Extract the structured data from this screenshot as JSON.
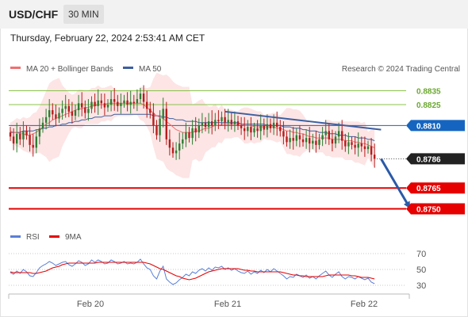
{
  "header": {
    "symbol": "USD/CHF",
    "timeframe": "30 MIN",
    "datetime": "Thursday, February 22, 2024 2:53:41 AM CET"
  },
  "legend": {
    "ma20": "MA 20 + Bollinger Bands",
    "ma50": "MA 50",
    "credit": "Research © 2024 Trading Central",
    "rsi": "RSI",
    "rsi_ma": "9MA"
  },
  "colors": {
    "candle_up": "#2e7d32",
    "candle_down": "#b71c1c",
    "ma20": "#f07070",
    "ma50": "#3d5fa0",
    "bollinger_fill": "#fde0e0",
    "resistance_green": "#8bc34a",
    "pivot_blue": "#1565c0",
    "support_red": "#e60000",
    "last_price": "#222222",
    "rsi": "#5b7fd6",
    "rsi_ma": "#e60000"
  },
  "chart_data": [
    {
      "type": "candlestick",
      "x_labels": [
        "Feb 20",
        "Feb 21",
        "Feb 22"
      ],
      "ylim": [
        0.874,
        0.8845
      ],
      "levels": [
        {
          "label": "0.8835",
          "value": 0.8835,
          "kind": "resistance"
        },
        {
          "label": "0.8825",
          "value": 0.8825,
          "kind": "resistance"
        },
        {
          "label": "0.8810",
          "value": 0.881,
          "kind": "pivot"
        },
        {
          "label": "0.8786",
          "value": 0.8786,
          "kind": "last"
        },
        {
          "label": "0.8765",
          "value": 0.8765,
          "kind": "support"
        },
        {
          "label": "0.8750",
          "value": 0.875,
          "kind": "support"
        }
      ],
      "close": [
        0.8802,
        0.8797,
        0.8804,
        0.88,
        0.8806,
        0.8803,
        0.8796,
        0.8794,
        0.8802,
        0.8808,
        0.8812,
        0.8816,
        0.8821,
        0.8818,
        0.8815,
        0.8819,
        0.8822,
        0.8824,
        0.882,
        0.8817,
        0.8821,
        0.8826,
        0.8823,
        0.8819,
        0.8822,
        0.8827,
        0.8824,
        0.8828,
        0.8826,
        0.8823,
        0.8825,
        0.8829,
        0.8827,
        0.8824,
        0.8826,
        0.8828,
        0.8825,
        0.8827,
        0.8826,
        0.8829,
        0.8833,
        0.8827,
        0.8822,
        0.8819,
        0.881,
        0.8803,
        0.8815,
        0.8822,
        0.88,
        0.8794,
        0.879,
        0.8792,
        0.8797,
        0.88,
        0.8805,
        0.8801,
        0.8808,
        0.8805,
        0.881,
        0.8812,
        0.8809,
        0.8813,
        0.881,
        0.8814,
        0.8813,
        0.8816,
        0.8812,
        0.8814,
        0.8811,
        0.8813,
        0.881,
        0.8808,
        0.8806,
        0.8809,
        0.8805,
        0.8808,
        0.8806,
        0.881,
        0.8807,
        0.8811,
        0.8808,
        0.8812,
        0.8809,
        0.8806,
        0.8802,
        0.8798,
        0.8801,
        0.8799,
        0.8803,
        0.88,
        0.8798,
        0.8801,
        0.8797,
        0.8799,
        0.8796,
        0.88,
        0.8803,
        0.8806,
        0.88,
        0.8797,
        0.8802,
        0.8806,
        0.8799,
        0.8795,
        0.8798,
        0.8796,
        0.8794,
        0.8797,
        0.8795,
        0.8793,
        0.8795,
        0.8789,
        0.8786
      ],
      "ma20": [
        0.8806,
        0.8805,
        0.8805,
        0.8804,
        0.8804,
        0.8803,
        0.8803,
        0.8804,
        0.8805,
        0.8807,
        0.8809,
        0.8811,
        0.8812,
        0.8814,
        0.8815,
        0.8816,
        0.8817,
        0.8818,
        0.8819,
        0.882,
        0.8821,
        0.8822,
        0.8822,
        0.8823,
        0.8823,
        0.8824,
        0.8824,
        0.8825,
        0.8825,
        0.8825,
        0.8826,
        0.8826,
        0.8826,
        0.8826,
        0.8826,
        0.8826,
        0.8826,
        0.8826,
        0.8826,
        0.8826,
        0.8826,
        0.8825,
        0.8823,
        0.8821,
        0.8819,
        0.8817,
        0.8816,
        0.8815,
        0.8813,
        0.8811,
        0.8809,
        0.8807,
        0.8806,
        0.8805,
        0.8805,
        0.8805,
        0.8805,
        0.8806,
        0.8806,
        0.8807,
        0.8808,
        0.8808,
        0.8809,
        0.881,
        0.881,
        0.8811,
        0.8811,
        0.8811,
        0.8811,
        0.8811,
        0.8811,
        0.8811,
        0.881,
        0.881,
        0.881,
        0.8809,
        0.8809,
        0.8809,
        0.8809,
        0.8809,
        0.8809,
        0.8809,
        0.8808,
        0.8808,
        0.8807,
        0.8806,
        0.8806,
        0.8805,
        0.8805,
        0.8804,
        0.8804,
        0.8803,
        0.8802,
        0.8802,
        0.8801,
        0.8801,
        0.8801,
        0.8801,
        0.8801,
        0.88,
        0.88,
        0.88,
        0.88,
        0.8799,
        0.8799,
        0.8799,
        0.8798,
        0.8798,
        0.8797,
        0.8797,
        0.8796,
        0.8795,
        0.8794
      ],
      "ma50": [
        0.8805,
        0.8805,
        0.8805,
        0.8805,
        0.8806,
        0.8806,
        0.8806,
        0.8806,
        0.8807,
        0.8807,
        0.8808,
        0.8808,
        0.8809,
        0.8809,
        0.881,
        0.881,
        0.8811,
        0.8811,
        0.8812,
        0.8812,
        0.8813,
        0.8813,
        0.8814,
        0.8814,
        0.8815,
        0.8815,
        0.8816,
        0.8816,
        0.8816,
        0.8817,
        0.8817,
        0.8817,
        0.8818,
        0.8818,
        0.8818,
        0.8818,
        0.8818,
        0.8818,
        0.8818,
        0.8818,
        0.8818,
        0.8818,
        0.8818,
        0.8818,
        0.8817,
        0.8817,
        0.8817,
        0.8816,
        0.8816,
        0.8815,
        0.8815,
        0.8814,
        0.8814,
        0.8814,
        0.8813,
        0.8813,
        0.8813,
        0.8813,
        0.8812,
        0.8812,
        0.8812,
        0.8812,
        0.8812,
        0.8812,
        0.8812,
        0.8812,
        0.8812,
        0.8812,
        0.8812,
        0.8812,
        0.8812,
        0.8811,
        0.8811,
        0.8811,
        0.8811,
        0.8811,
        0.8811,
        0.8811,
        0.8811,
        0.881,
        0.881,
        0.881,
        0.881,
        0.881,
        0.8809,
        0.8809,
        0.8809,
        0.8808,
        0.8808,
        0.8808,
        0.8807,
        0.8807,
        0.8806,
        0.8806,
        0.8806,
        0.8805,
        0.8805,
        0.8805,
        0.8804,
        0.8804,
        0.8804,
        0.8803,
        0.8803,
        0.8803,
        0.8802,
        0.8802,
        0.8802,
        0.8801,
        0.8801,
        0.8801,
        0.88,
        0.88,
        0.8799
      ],
      "trendline": {
        "from": {
          "i": 66,
          "v": 0.882
        },
        "to": {
          "i": 114,
          "v": 0.8807
        }
      },
      "projection_arrow": {
        "from": {
          "i": 114,
          "v": 0.8786
        },
        "to": {
          "i": 123,
          "v": 0.875
        }
      }
    },
    {
      "type": "line",
      "name": "RSI",
      "ylim": [
        20,
        80
      ],
      "y_ticks": [
        "70",
        "50",
        "30"
      ],
      "series": [
        {
          "name": "RSI",
          "values": [
            46,
            44,
            48,
            45,
            50,
            47,
            42,
            41,
            46,
            52,
            55,
            57,
            60,
            58,
            55,
            57,
            59,
            60,
            56,
            54,
            57,
            61,
            59,
            55,
            57,
            62,
            59,
            62,
            60,
            57,
            58,
            62,
            60,
            57,
            58,
            60,
            57,
            58,
            57,
            59,
            63,
            57,
            52,
            50,
            42,
            38,
            48,
            54,
            38,
            34,
            31,
            33,
            37,
            40,
            44,
            42,
            47,
            45,
            49,
            51,
            48,
            52,
            49,
            53,
            52,
            54,
            50,
            52,
            49,
            51,
            48,
            46,
            45,
            48,
            44,
            47,
            45,
            49,
            46,
            50,
            47,
            51,
            48,
            45,
            42,
            38,
            41,
            40,
            44,
            42,
            40,
            43,
            39,
            41,
            38,
            42,
            45,
            48,
            43,
            40,
            44,
            47,
            41,
            38,
            41,
            40,
            38,
            41,
            39,
            37,
            39,
            34,
            32
          ]
        },
        {
          "name": "9MA",
          "values": [
            47,
            46,
            46,
            46,
            46,
            46,
            46,
            45,
            45,
            46,
            47,
            48,
            50,
            52,
            53,
            54,
            56,
            57,
            58,
            58,
            58,
            58,
            58,
            58,
            58,
            58,
            58,
            59,
            59,
            59,
            59,
            59,
            59,
            59,
            59,
            59,
            59,
            59,
            59,
            59,
            59,
            59,
            58,
            57,
            55,
            53,
            51,
            50,
            48,
            46,
            44,
            42,
            41,
            39,
            38,
            37,
            38,
            39,
            41,
            43,
            45,
            47,
            48,
            49,
            50,
            51,
            51,
            51,
            51,
            51,
            51,
            50,
            49,
            49,
            48,
            48,
            47,
            47,
            47,
            47,
            47,
            47,
            47,
            47,
            46,
            45,
            44,
            43,
            43,
            42,
            42,
            41,
            41,
            41,
            41,
            41,
            41,
            42,
            43,
            43,
            43,
            43,
            43,
            43,
            43,
            42,
            42,
            41,
            40,
            40,
            40,
            39,
            38
          ]
        }
      ]
    }
  ]
}
